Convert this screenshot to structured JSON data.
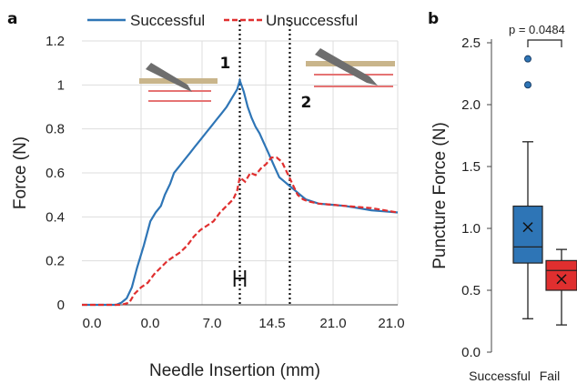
{
  "panel_a_label": "a",
  "panel_b_label": "b",
  "chart_data": [
    {
      "type": "line",
      "panel": "a",
      "xlabel": "Needle Insertion (mm)",
      "ylabel": "Force (N)",
      "x_tick_labels": [
        "0.0",
        "0.0",
        "7.0",
        "14.5",
        "21.0",
        "21.0"
      ],
      "y_ticks": [
        "0",
        "0.2",
        "0.4",
        "0.6",
        "0.8",
        "1",
        "1.2"
      ],
      "ylim": [
        0,
        1.2
      ],
      "grid": true,
      "legend_position": "top",
      "series": [
        {
          "name": "Successful",
          "color": "#2E75B6",
          "style": "solid",
          "points": [
            [
              0,
              0
            ],
            [
              2.6,
              0
            ],
            [
              3.0,
              0.01
            ],
            [
              3.4,
              0.03
            ],
            [
              3.8,
              0.08
            ],
            [
              4.2,
              0.17
            ],
            [
              4.7,
              0.27
            ],
            [
              5.2,
              0.38
            ],
            [
              5.6,
              0.42
            ],
            [
              6.0,
              0.45
            ],
            [
              6.3,
              0.5
            ],
            [
              6.7,
              0.55
            ],
            [
              7.0,
              0.6
            ],
            [
              7.4,
              0.63
            ],
            [
              7.8,
              0.66
            ],
            [
              8.2,
              0.69
            ],
            [
              8.6,
              0.72
            ],
            [
              9.0,
              0.75
            ],
            [
              9.4,
              0.78
            ],
            [
              9.8,
              0.81
            ],
            [
              10.2,
              0.84
            ],
            [
              10.6,
              0.87
            ],
            [
              11.0,
              0.9
            ],
            [
              11.4,
              0.94
            ],
            [
              11.8,
              0.98
            ],
            [
              12.0,
              1.02
            ],
            [
              12.3,
              0.97
            ],
            [
              12.6,
              0.9
            ],
            [
              12.9,
              0.85
            ],
            [
              13.2,
              0.81
            ],
            [
              13.5,
              0.78
            ],
            [
              13.8,
              0.74
            ],
            [
              14.1,
              0.7
            ],
            [
              14.4,
              0.66
            ],
            [
              14.7,
              0.62
            ],
            [
              15.0,
              0.58
            ],
            [
              15.4,
              0.56
            ],
            [
              15.8,
              0.54
            ],
            [
              16.2,
              0.52
            ],
            [
              16.6,
              0.5
            ],
            [
              17.0,
              0.48
            ],
            [
              17.5,
              0.47
            ],
            [
              18.0,
              0.46
            ],
            [
              19.0,
              0.455
            ],
            [
              20.0,
              0.45
            ],
            [
              21.0,
              0.44
            ],
            [
              22.0,
              0.43
            ],
            [
              23.0,
              0.425
            ],
            [
              24.0,
              0.42
            ]
          ]
        },
        {
          "name": "Unsuccessful",
          "color": "#E02F2F",
          "style": "dashed",
          "points": [
            [
              0,
              0
            ],
            [
              3.0,
              0
            ],
            [
              3.6,
              0.01
            ],
            [
              4.0,
              0.05
            ],
            [
              4.5,
              0.08
            ],
            [
              5.0,
              0.1
            ],
            [
              5.5,
              0.14
            ],
            [
              6.0,
              0.17
            ],
            [
              6.5,
              0.2
            ],
            [
              7.0,
              0.22
            ],
            [
              7.5,
              0.24
            ],
            [
              8.0,
              0.27
            ],
            [
              8.5,
              0.31
            ],
            [
              9.0,
              0.34
            ],
            [
              9.5,
              0.36
            ],
            [
              10.0,
              0.38
            ],
            [
              10.5,
              0.42
            ],
            [
              11.0,
              0.45
            ],
            [
              11.5,
              0.48
            ],
            [
              11.8,
              0.52
            ],
            [
              12.0,
              0.58
            ],
            [
              12.4,
              0.56
            ],
            [
              12.8,
              0.6
            ],
            [
              13.2,
              0.59
            ],
            [
              13.6,
              0.62
            ],
            [
              14.0,
              0.64
            ],
            [
              14.4,
              0.67
            ],
            [
              14.8,
              0.67
            ],
            [
              15.2,
              0.65
            ],
            [
              15.6,
              0.6
            ],
            [
              16.0,
              0.55
            ],
            [
              16.4,
              0.5
            ],
            [
              16.8,
              0.48
            ],
            [
              17.2,
              0.47
            ],
            [
              17.6,
              0.465
            ],
            [
              18.0,
              0.46
            ],
            [
              19.0,
              0.455
            ],
            [
              20.0,
              0.45
            ],
            [
              21.0,
              0.445
            ],
            [
              22.0,
              0.44
            ],
            [
              23.0,
              0.43
            ],
            [
              24.0,
              0.42
            ]
          ]
        }
      ],
      "vertical_markers": [
        {
          "label": "1",
          "x": 12.0
        },
        {
          "label": "2",
          "x": 15.8
        }
      ],
      "error_bar": {
        "x": 12.0,
        "x_err": 0.4,
        "y": 0.12
      }
    },
    {
      "type": "box",
      "panel": "b",
      "ylabel": "Puncture Force (N)",
      "y_ticks": [
        "0.0",
        "0.5",
        "1.0",
        "1.5",
        "2.0",
        "2.5"
      ],
      "ylim": [
        0,
        2.5
      ],
      "categories": [
        "Successful",
        "Fail"
      ],
      "boxes": [
        {
          "name": "Successful",
          "color": "#2E75B6",
          "whisker_low": 0.27,
          "q1": 0.72,
          "median": 0.85,
          "q3": 1.18,
          "whisker_high": 1.7,
          "mean": 1.01,
          "outliers": [
            2.37,
            2.16
          ]
        },
        {
          "name": "Fail",
          "color": "#E02F2F",
          "whisker_low": 0.22,
          "q1": 0.5,
          "median": 0.66,
          "q3": 0.74,
          "whisker_high": 0.83,
          "mean": 0.59,
          "outliers": []
        }
      ],
      "annotation": "p = 0.0484"
    }
  ]
}
